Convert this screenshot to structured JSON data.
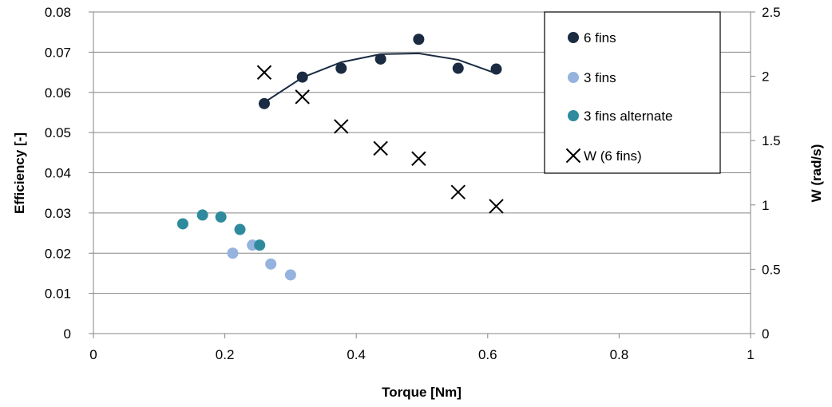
{
  "chart_data": {
    "type": "scatter",
    "xlabel": "Torque [Nm]",
    "ylabel": "Efficiency [-]",
    "y2label": "W (rad/s)",
    "xlim": [
      0,
      1
    ],
    "ylim": [
      0,
      0.08
    ],
    "y2lim": [
      0,
      2.5
    ],
    "x_ticks": [
      0,
      0.2,
      0.4,
      0.6,
      0.8,
      1
    ],
    "x_tick_labels": [
      "0",
      "0.2",
      "0.4",
      "0.6",
      "0.8",
      "1"
    ],
    "y_ticks": [
      0,
      0.01,
      0.02,
      0.03,
      0.04,
      0.05,
      0.06,
      0.07,
      0.08
    ],
    "y_tick_labels": [
      "0",
      "0.01",
      "0.02",
      "0.03",
      "0.04",
      "0.05",
      "0.06",
      "0.07",
      "0.08"
    ],
    "y2_ticks": [
      0,
      0.5,
      1,
      1.5,
      2,
      2.5
    ],
    "y2_tick_labels": [
      "0",
      "0.5",
      "1",
      "1.5",
      "2",
      "2.5"
    ],
    "grid": "horizontal",
    "legend_position": "top-right",
    "series": [
      {
        "name": "6 fins",
        "axis": "left",
        "marker": "circle",
        "color": "#1a2b42",
        "x": [
          0.26,
          0.318,
          0.377,
          0.437,
          0.495,
          0.555,
          0.613
        ],
        "y": [
          0.0572,
          0.0638,
          0.066,
          0.0683,
          0.0732,
          0.066,
          0.0658
        ]
      },
      {
        "name": "3 fins",
        "axis": "left",
        "marker": "circle",
        "color": "#95b3de",
        "x": [
          0.212,
          0.242,
          0.27,
          0.3
        ],
        "y": [
          0.02,
          0.022,
          0.0173,
          0.0146
        ]
      },
      {
        "name": "3 fins alternate",
        "axis": "left",
        "marker": "circle",
        "color": "#2e8a9c",
        "x": [
          0.136,
          0.166,
          0.194,
          0.223,
          0.253
        ],
        "y": [
          0.0273,
          0.0295,
          0.029,
          0.0259,
          0.022
        ]
      },
      {
        "name": "W (6 fins)",
        "axis": "right",
        "marker": "x",
        "color": "#000000",
        "x": [
          0.26,
          0.318,
          0.377,
          0.437,
          0.495,
          0.555,
          0.613
        ],
        "y": [
          2.03,
          1.84,
          1.61,
          1.44,
          1.36,
          1.1,
          0.99
        ]
      }
    ],
    "trendline": {
      "series": "6 fins",
      "type": "polynomial",
      "color": "#1a2b42",
      "x_range": [
        0.26,
        0.613
      ],
      "points": [
        [
          0.26,
          0.0575
        ],
        [
          0.318,
          0.0637
        ],
        [
          0.377,
          0.0675
        ],
        [
          0.437,
          0.0695
        ],
        [
          0.495,
          0.0697
        ],
        [
          0.555,
          0.0681
        ],
        [
          0.613,
          0.0647
        ]
      ]
    }
  }
}
